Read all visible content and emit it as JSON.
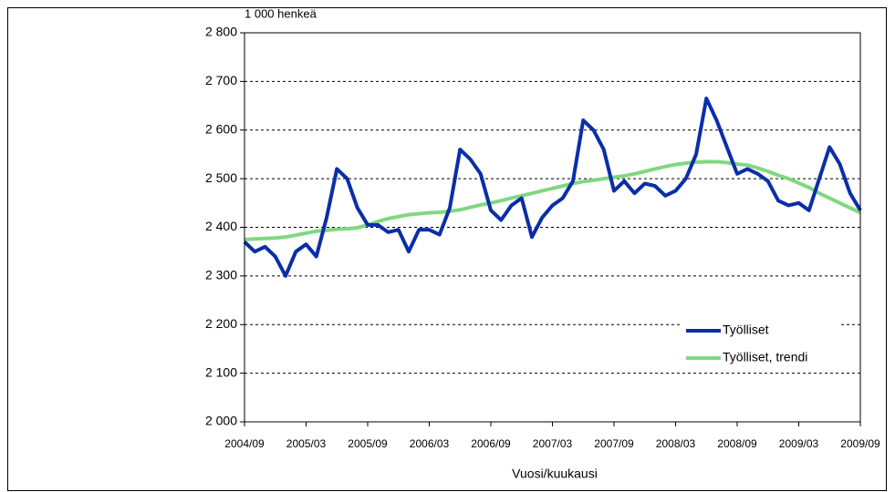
{
  "chart_data": {
    "type": "line",
    "unit_label": "1 000 henkeä",
    "x_label": "Vuosi/kuukausi",
    "categories": [
      "2004/09",
      null,
      null,
      null,
      null,
      null,
      "2005/03",
      null,
      null,
      null,
      null,
      null,
      "2005/09",
      null,
      null,
      null,
      null,
      null,
      "2006/03",
      null,
      null,
      null,
      null,
      null,
      "2006/09",
      null,
      null,
      null,
      null,
      null,
      "2007/03",
      null,
      null,
      null,
      null,
      null,
      "2007/09",
      null,
      null,
      null,
      null,
      null,
      "2008/03",
      null,
      null,
      null,
      null,
      null,
      "2008/09",
      null,
      null,
      null,
      null,
      null,
      "2009/03",
      null,
      null,
      null,
      null,
      null,
      "2009/09"
    ],
    "series": [
      {
        "name": "Työlliset",
        "color": "#0a2ea8",
        "values": [
          2370,
          2350,
          2360,
          2340,
          2300,
          2350,
          2365,
          2340,
          2420,
          2520,
          2500,
          2440,
          2405,
          2405,
          2390,
          2395,
          2350,
          2395,
          2395,
          2385,
          2440,
          2560,
          2540,
          2510,
          2435,
          2415,
          2445,
          2460,
          2380,
          2420,
          2445,
          2460,
          2495,
          2620,
          2600,
          2560,
          2475,
          2495,
          2470,
          2490,
          2485,
          2465,
          2475,
          2500,
          2550,
          2665,
          2620,
          2565,
          2510,
          2520,
          2510,
          2495,
          2455,
          2445,
          2450,
          2435,
          2500,
          2565,
          2530,
          2470,
          2435
        ]
      },
      {
        "name": "Työlliset, trendi",
        "color": "#80d880",
        "values": [
          2375,
          2376,
          2377,
          2378,
          2380,
          2384,
          2388,
          2392,
          2394,
          2396,
          2397,
          2399,
          2405,
          2412,
          2418,
          2422,
          2426,
          2428,
          2430,
          2431,
          2433,
          2436,
          2441,
          2446,
          2450,
          2455,
          2460,
          2465,
          2470,
          2475,
          2480,
          2485,
          2490,
          2494,
          2497,
          2500,
          2503,
          2506,
          2510,
          2515,
          2520,
          2525,
          2529,
          2532,
          2534,
          2535,
          2535,
          2533,
          2530,
          2528,
          2522,
          2515,
          2507,
          2500,
          2491,
          2482,
          2470,
          2460,
          2450,
          2440,
          2430
        ]
      }
    ],
    "ylim": [
      2000,
      2800
    ],
    "yticks": [
      {
        "value": 2000,
        "label": "2 000"
      },
      {
        "value": 2100,
        "label": "2 100"
      },
      {
        "value": 2200,
        "label": "2 200"
      },
      {
        "value": 2300,
        "label": "2 300"
      },
      {
        "value": 2400,
        "label": "2 400"
      },
      {
        "value": 2500,
        "label": "2 500"
      },
      {
        "value": 2600,
        "label": "2 600"
      },
      {
        "value": 2700,
        "label": "2 700"
      },
      {
        "value": 2800,
        "label": "2 800"
      }
    ],
    "grid": true,
    "legend": "lower right"
  }
}
